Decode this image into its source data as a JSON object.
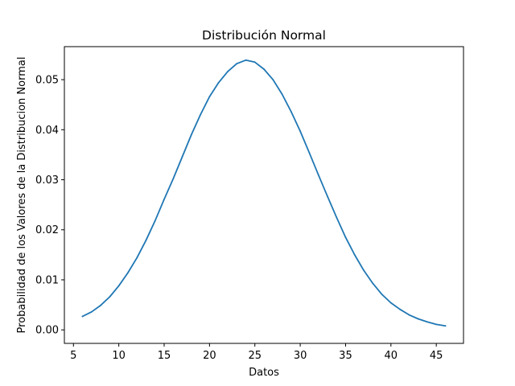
{
  "chart_data": {
    "type": "line",
    "title": "Distribución Normal",
    "xlabel": "Datos",
    "ylabel": "Probabilidad de los Valores de la Distribucion Normal",
    "xlim": [
      4.0,
      48.0
    ],
    "ylim": [
      -0.0027,
      0.0566
    ],
    "xticks": [
      5,
      10,
      15,
      20,
      25,
      30,
      35,
      40,
      45
    ],
    "xtick_labels": [
      "5",
      "10",
      "15",
      "20",
      "25",
      "30",
      "35",
      "40",
      "45"
    ],
    "yticks": [
      0.0,
      0.01,
      0.02,
      0.03,
      0.04,
      0.05
    ],
    "ytick_labels": [
      "0.00",
      "0.01",
      "0.02",
      "0.03",
      "0.04",
      "0.05"
    ],
    "grid": false,
    "legend": false,
    "series": [
      {
        "color": "#1f77b4",
        "x": [
          6,
          7,
          8,
          9,
          10,
          11,
          12,
          13,
          14,
          15,
          16,
          17,
          18,
          19,
          20,
          21,
          22,
          23,
          24,
          25,
          26,
          27,
          28,
          29,
          30,
          31,
          32,
          33,
          34,
          35,
          36,
          37,
          38,
          39,
          40,
          41,
          42,
          43,
          44,
          45,
          46
        ],
        "y": [
          0.0027,
          0.0036,
          0.0049,
          0.0066,
          0.0088,
          0.0114,
          0.0144,
          0.0179,
          0.0218,
          0.0261,
          0.0302,
          0.0346,
          0.039,
          0.043,
          0.0466,
          0.0494,
          0.0516,
          0.0532,
          0.0539,
          0.0535,
          0.0521,
          0.05,
          0.0471,
          0.0436,
          0.0397,
          0.0354,
          0.031,
          0.0267,
          0.0225,
          0.0185,
          0.015,
          0.0119,
          0.0093,
          0.0071,
          0.0054,
          0.0041,
          0.003,
          0.0022,
          0.0016,
          0.0011,
          0.0008
        ]
      }
    ]
  }
}
